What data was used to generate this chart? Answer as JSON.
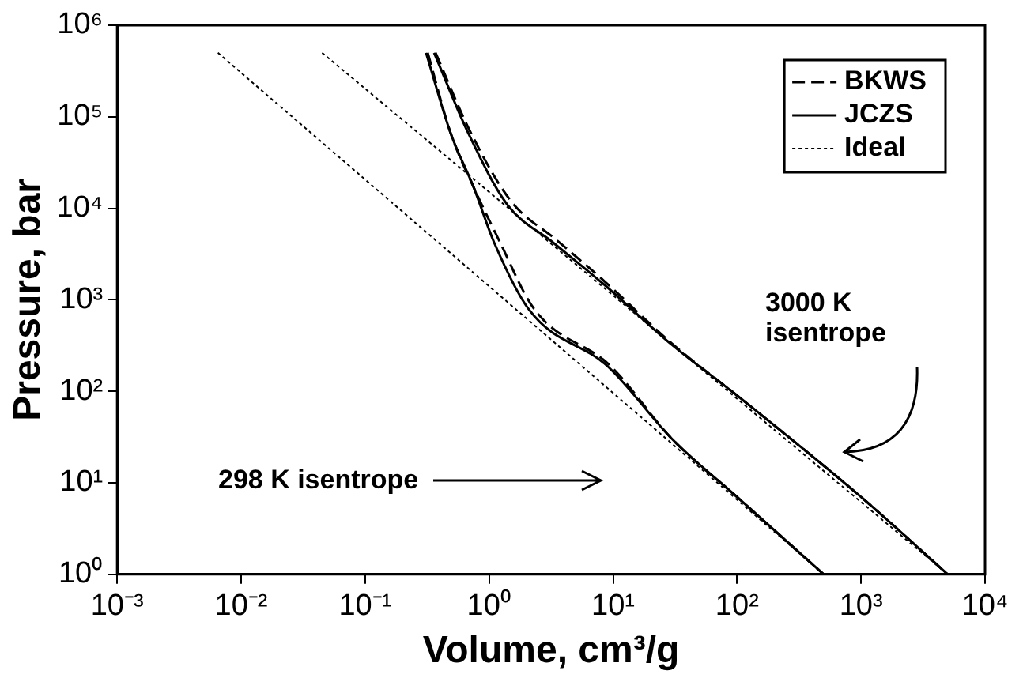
{
  "chart_data": {
    "type": "line",
    "xlabel": "Volume, cm³/g",
    "ylabel": "Pressure, bar",
    "log": "xy",
    "grid": false,
    "legend": "top right",
    "marker": "none",
    "xlim": [
      0.001,
      10000
    ],
    "ylim": [
      1,
      1000000
    ],
    "xticks": [
      {
        "value": 0.001,
        "label": "10⁻³"
      },
      {
        "value": 0.01,
        "label": "10⁻²"
      },
      {
        "value": 0.1,
        "label": "10⁻¹"
      },
      {
        "value": 1,
        "label": "10⁰"
      },
      {
        "value": 10,
        "label": "10¹"
      },
      {
        "value": 100,
        "label": "10²"
      },
      {
        "value": 1000,
        "label": "10³"
      },
      {
        "value": 10000,
        "label": "10⁴"
      }
    ],
    "yticks": [
      {
        "value": 1,
        "label": "10⁰"
      },
      {
        "value": 10,
        "label": "10¹"
      },
      {
        "value": 100,
        "label": "10²"
      },
      {
        "value": 1000,
        "label": "10³"
      },
      {
        "value": 10000,
        "label": "10⁴"
      },
      {
        "value": 100000,
        "label": "10⁵"
      },
      {
        "value": 1000000,
        "label": "10⁶"
      }
    ],
    "series": [
      {
        "name": "BKWS",
        "color": "#000000",
        "line_style": "dashed",
        "x": [
          0.37,
          0.7,
          1.5,
          3.5,
          8.5,
          30,
          100,
          1000,
          5000
        ],
        "values": [
          500000,
          70000,
          12000,
          4500,
          1600,
          330,
          90,
          7,
          1
        ]
      },
      {
        "name": "JCZS",
        "color": "#000000",
        "line_style": "solid",
        "x": [
          0.36,
          0.68,
          1.4,
          3.3,
          8.3,
          30,
          100,
          1000,
          5000
        ],
        "values": [
          500000,
          66000,
          11000,
          4200,
          1500,
          320,
          90,
          7,
          1
        ]
      },
      {
        "name": "Ideal",
        "color": "#000000",
        "line_style": "dotted",
        "x": [
          0.045,
          5000
        ],
        "values": [
          500000,
          1
        ]
      },
      {
        "color": "#000000",
        "line_style": "dashed",
        "x": [
          0.32,
          0.49,
          0.75,
          1.2,
          2.3,
          9.5,
          30,
          100,
          500
        ],
        "values": [
          500000,
          66000,
          17000,
          4500,
          800,
          190,
          30,
          7,
          1
        ]
      },
      {
        "color": "#000000",
        "line_style": "solid",
        "x": [
          0.31,
          0.49,
          0.75,
          1.1,
          2.1,
          9.1,
          30,
          100,
          500
        ],
        "values": [
          500000,
          66000,
          17000,
          4200,
          780,
          186,
          30,
          7,
          1
        ]
      },
      {
        "color": "#000000",
        "line_style": "dotted",
        "x": [
          0.0065,
          500
        ],
        "values": [
          500000,
          1
        ]
      }
    ],
    "annotations": [
      "298 K isentrope",
      "3000 K\nisentrope"
    ]
  }
}
